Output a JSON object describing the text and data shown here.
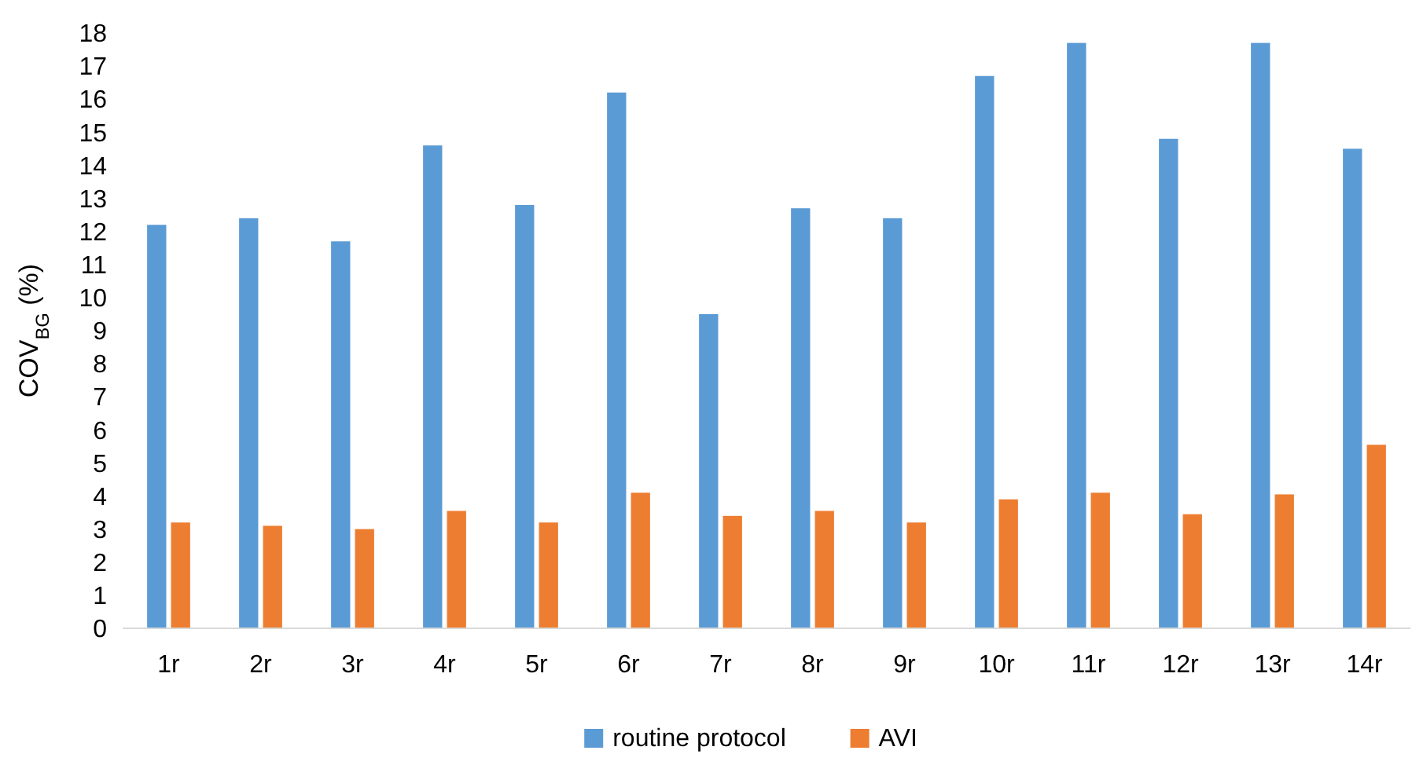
{
  "chart_data": {
    "type": "bar",
    "ylabel": "COV$_{BG}$ (%)",
    "categories": [
      "1r",
      "2r",
      "3r",
      "4r",
      "5r",
      "6r",
      "7r",
      "8r",
      "9r",
      "10r",
      "11r",
      "12r",
      "13r",
      "14r"
    ],
    "series": [
      {
        "name": "routine protocol",
        "color": "#5b9bd5",
        "values": [
          12.2,
          12.4,
          11.7,
          14.6,
          12.8,
          16.2,
          9.5,
          12.7,
          12.4,
          16.7,
          17.7,
          14.8,
          17.7,
          14.5
        ]
      },
      {
        "name": "AVI",
        "color": "#ed7d31",
        "values": [
          3.2,
          3.1,
          3.0,
          3.55,
          3.2,
          4.1,
          3.4,
          3.55,
          3.2,
          3.9,
          4.1,
          3.45,
          4.05,
          5.55
        ]
      }
    ],
    "ylim": [
      0,
      18
    ],
    "yticks": [
      0,
      1,
      2,
      3,
      4,
      5,
      6,
      7,
      8,
      9,
      10,
      11,
      12,
      13,
      14,
      15,
      16,
      17,
      18
    ],
    "legend": "bottom"
  }
}
